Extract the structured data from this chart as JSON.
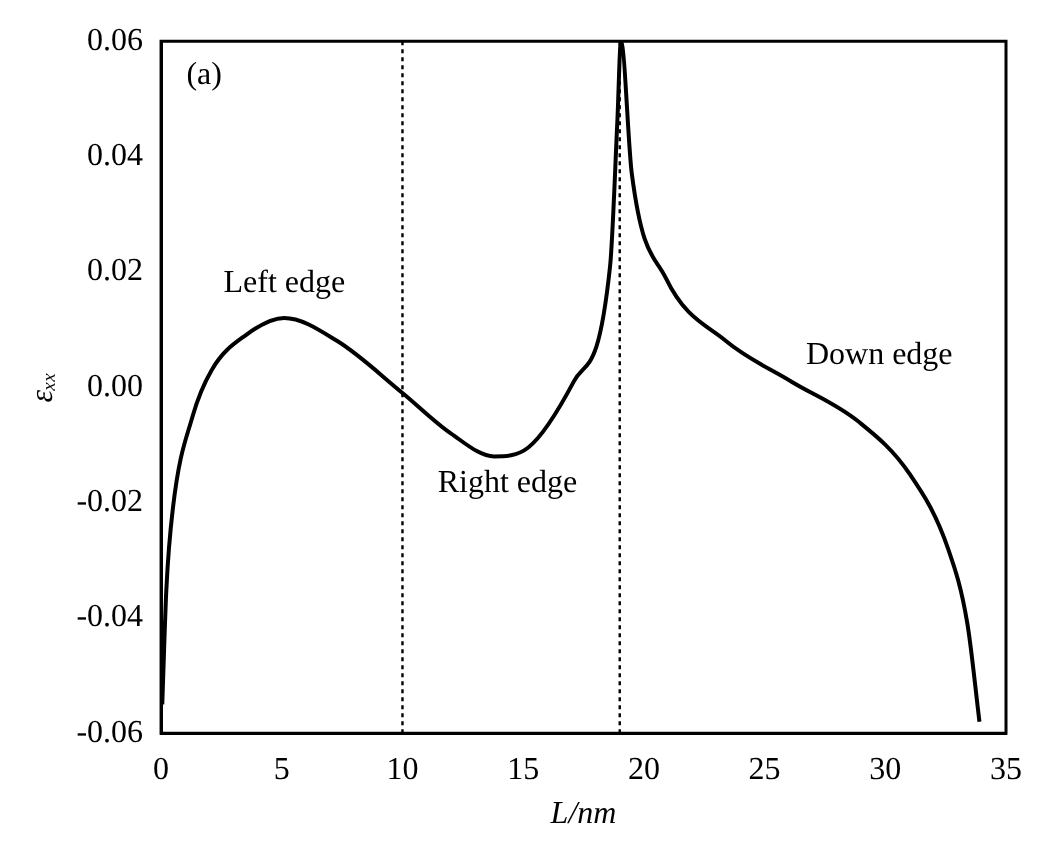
{
  "chart_data": {
    "type": "line",
    "xlabel": "L/nm",
    "ylabel": "εₓₓ",
    "x": [
      0.05,
      0.22,
      0.49,
      1.31,
      2.1,
      3.5,
      5.1,
      7.3,
      10.0,
      12.0,
      13.8,
      15.2,
      17.1,
      18.6,
      18.9,
      19.05,
      19.5,
      20.9,
      23.4,
      26.1,
      28.9,
      31.0,
      32.6,
      33.4,
      33.9
    ],
    "series": [
      {
        "color": "#000000",
        "values": [
          -0.055,
          -0.035,
          -0.021,
          -0.005,
          0.003,
          0.009,
          0.012,
          0.008,
          -0.001,
          -0.008,
          -0.012,
          -0.0105,
          0.001,
          0.021,
          0.046,
          0.06,
          0.037,
          0.019,
          0.008,
          0.001,
          -0.006,
          -0.015,
          -0.028,
          -0.041,
          -0.058
        ]
      }
    ],
    "xlim": [
      0,
      35
    ],
    "xticks": [
      0,
      5,
      10,
      15,
      20,
      25,
      30,
      35
    ],
    "ylim": [
      -0.06,
      0.06
    ],
    "yticks": [
      -0.06,
      -0.04,
      -0.02,
      {
        "value": 0,
        "label": "0.00"
      },
      0.02,
      0.04,
      0.06
    ],
    "ref_lines": [
      {
        "axis": "x",
        "value": 10,
        "color": "#000000",
        "line_style": "dotted"
      },
      {
        "axis": "x",
        "value": 19,
        "color": "#000000",
        "line_style": "dotted"
      }
    ],
    "annotations": [
      "(a)",
      "Left edge",
      "Right edge",
      "Down edge"
    ],
    "grid": false,
    "legend": false,
    "marker": "none",
    "line_style": "solid"
  }
}
